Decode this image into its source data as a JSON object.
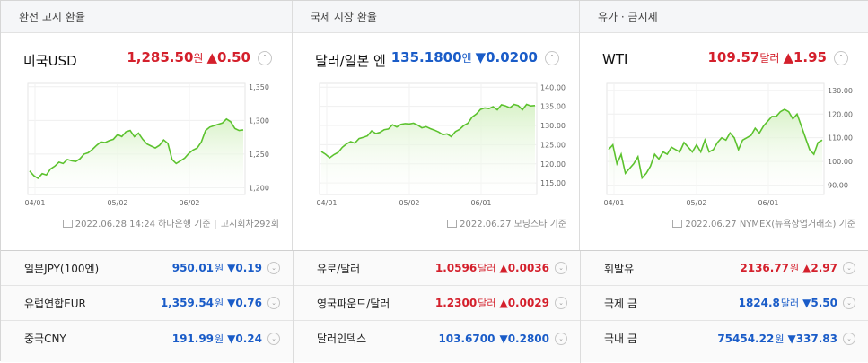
{
  "colors": {
    "up": "#d4202c",
    "down": "#1a5cc8",
    "line": "#5cc22e",
    "fill": "#d9f2c9"
  },
  "panels": [
    {
      "header": "환전 고시 환율",
      "name": "미국USD",
      "price": "1,285.50",
      "unit": "원",
      "dir": "up",
      "arrow": "▲",
      "change": "0.50",
      "toggle": "⌃",
      "caption": "2022.06.28 14:24 하나은행 기준",
      "caption_extra": "고시회차292회",
      "chart_data": {
        "type": "area",
        "x_ticks": [
          "04/01",
          "05/02",
          "06/02"
        ],
        "y_ticks": [
          "1,350",
          "1,300",
          "1,250",
          "1,200"
        ],
        "ylim": [
          1190,
          1355
        ],
        "values": [
          1225,
          1218,
          1214,
          1221,
          1219,
          1228,
          1232,
          1238,
          1236,
          1242,
          1240,
          1239,
          1243,
          1250,
          1252,
          1257,
          1263,
          1268,
          1267,
          1270,
          1272,
          1279,
          1276,
          1283,
          1285,
          1276,
          1281,
          1272,
          1265,
          1262,
          1259,
          1263,
          1271,
          1266,
          1242,
          1236,
          1240,
          1244,
          1251,
          1256,
          1259,
          1268,
          1285,
          1290,
          1292,
          1294,
          1296,
          1302,
          1298,
          1288,
          1285,
          1286
        ]
      }
    },
    {
      "header": "국제 시장 환율",
      "name": "달러/일본 엔",
      "price": "135.1800",
      "unit": "엔",
      "dir": "down",
      "arrow": "▼",
      "change": "0.0200",
      "toggle": "⌃",
      "caption": "2022.06.27 모닝스타 기준",
      "caption_extra": "",
      "chart_data": {
        "type": "area",
        "x_ticks": [
          "04/01",
          "05/02",
          "06/01"
        ],
        "y_ticks": [
          "140.00",
          "135.00",
          "130.00",
          "125.00",
          "120.00",
          "115.00"
        ],
        "ylim": [
          112,
          141
        ],
        "values": [
          123.2,
          122.5,
          121.6,
          122.4,
          123.0,
          124.3,
          125.2,
          125.8,
          125.4,
          126.6,
          126.9,
          127.3,
          128.6,
          127.9,
          128.2,
          128.9,
          129.1,
          130.2,
          129.6,
          130.3,
          130.5,
          130.4,
          130.6,
          130.1,
          129.4,
          129.7,
          129.2,
          128.8,
          128.3,
          127.6,
          127.8,
          127.1,
          128.4,
          129.0,
          130.0,
          130.6,
          132.2,
          133.0,
          134.2,
          134.6,
          134.4,
          134.9,
          134.1,
          135.4,
          135.1,
          134.6,
          135.5,
          135.2,
          134.1,
          135.5,
          135.1,
          135.2
        ]
      }
    },
    {
      "header": "유가 · 금시세",
      "name": "WTI",
      "price": "109.57",
      "unit": "달러",
      "dir": "up",
      "arrow": "▲",
      "change": "1.95",
      "toggle": "⌃",
      "caption": "2022.06.27 NYMEX(뉴욕상업거래소) 기준",
      "caption_extra": "",
      "chart_data": {
        "type": "area",
        "x_ticks": [
          "04/01",
          "05/02",
          "06/01"
        ],
        "y_ticks": [
          "130.00",
          "120.00",
          "110.00",
          "100.00",
          "90.00"
        ],
        "ylim": [
          86,
          133
        ],
        "values": [
          105,
          107,
          99,
          103,
          95,
          97,
          99,
          102,
          93,
          95,
          98,
          103,
          101,
          104,
          103,
          106,
          105,
          104,
          108,
          106,
          104,
          107,
          104,
          109,
          104,
          105,
          108,
          110,
          109,
          112,
          110,
          105,
          109,
          110,
          111,
          114,
          112,
          115,
          117,
          119,
          119,
          121,
          122,
          121,
          118,
          120,
          115,
          110,
          105,
          103,
          108,
          109
        ]
      }
    }
  ],
  "rows": [
    [
      {
        "name": "일본JPY(100엔)",
        "price": "950.01",
        "unit": "원",
        "dir": "down",
        "arrow": "▼",
        "change": "0.19",
        "toggle": "⌄"
      },
      {
        "name": "유럽연합EUR",
        "price": "1,359.54",
        "unit": "원",
        "dir": "down",
        "arrow": "▼",
        "change": "0.76",
        "toggle": "⌄"
      },
      {
        "name": "중국CNY",
        "price": "191.99",
        "unit": "원",
        "dir": "down",
        "arrow": "▼",
        "change": "0.24",
        "toggle": "⌄"
      }
    ],
    [
      {
        "name": "유로/달러",
        "price": "1.0596",
        "unit": "달러",
        "dir": "up",
        "arrow": "▲",
        "change": "0.0036",
        "toggle": "⌄"
      },
      {
        "name": "영국파운드/달러",
        "price": "1.2300",
        "unit": "달러",
        "dir": "up",
        "arrow": "▲",
        "change": "0.0029",
        "toggle": "⌄"
      },
      {
        "name": "달러인덱스",
        "price": "103.6700",
        "unit": "",
        "dir": "down",
        "arrow": "▼",
        "change": "0.2800",
        "toggle": "⌄"
      }
    ],
    [
      {
        "name": "휘발유",
        "price": "2136.77",
        "unit": "원",
        "dir": "up",
        "arrow": "▲",
        "change": "2.97",
        "toggle": "⌄"
      },
      {
        "name": "국제 금",
        "price": "1824.8",
        "unit": "달러",
        "dir": "down",
        "arrow": "▼",
        "change": "5.50",
        "toggle": "⌄"
      },
      {
        "name": "국내 금",
        "price": "75454.22",
        "unit": "원",
        "dir": "down",
        "arrow": "▼",
        "change": "337.83",
        "toggle": "⌄"
      }
    ]
  ]
}
